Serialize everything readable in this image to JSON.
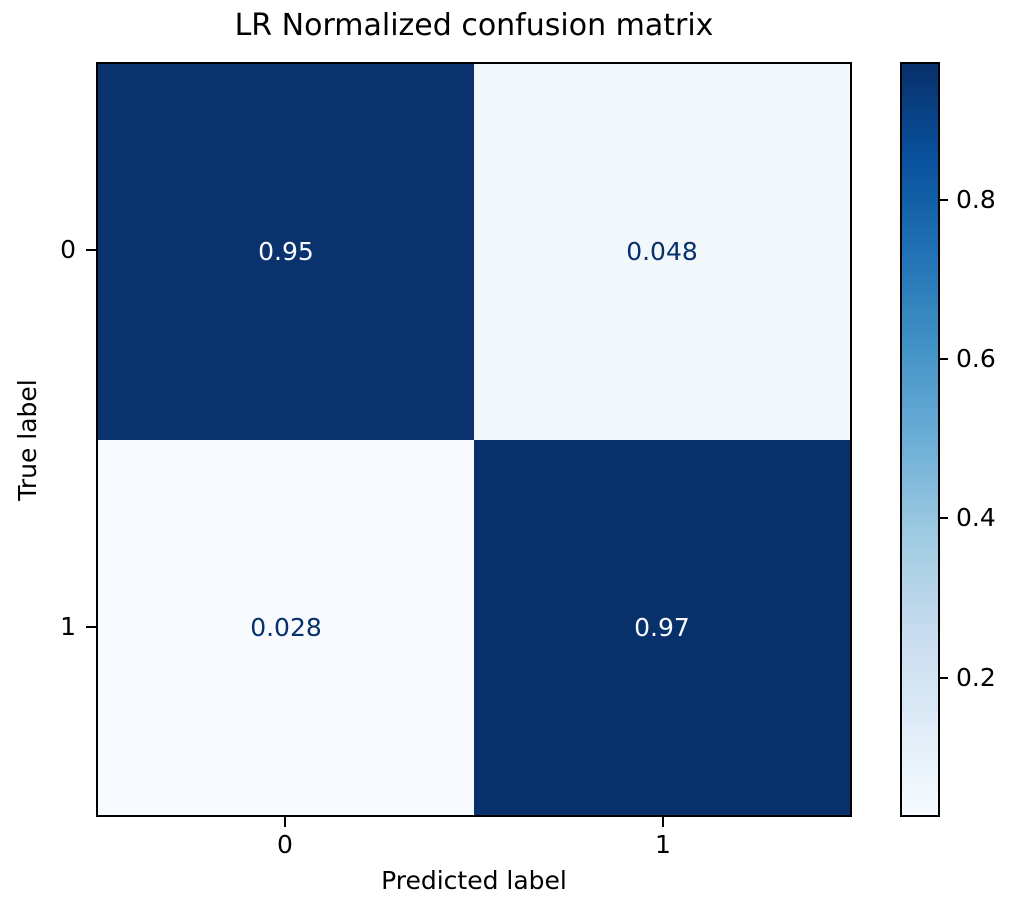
{
  "figure": {
    "background": "#ffffff",
    "text_color": "#000000"
  },
  "chart_data": {
    "type": "heatmap",
    "title": "LR Normalized confusion matrix",
    "xlabel": "Predicted label",
    "ylabel": "True label",
    "x_tick_labels": [
      "0",
      "1"
    ],
    "y_tick_labels": [
      "0",
      "1"
    ],
    "matrix": [
      [
        0.95,
        0.048
      ],
      [
        0.028,
        0.97
      ]
    ],
    "cells": [
      {
        "row": 0,
        "col": 0,
        "label": "0.95",
        "value": 0.95,
        "bg": "#0a336e",
        "fg": "#f7fbff"
      },
      {
        "row": 0,
        "col": 1,
        "label": "0.048",
        "value": 0.048,
        "bg": "#f2f7fc",
        "fg": "#08306b"
      },
      {
        "row": 1,
        "col": 0,
        "label": "0.028",
        "value": 0.028,
        "bg": "#f7fbff",
        "fg": "#08306b"
      },
      {
        "row": 1,
        "col": 1,
        "label": "0.97",
        "value": 0.97,
        "bg": "#08306b",
        "fg": "#f7fbff"
      }
    ],
    "colormap": "Blues",
    "grid": false,
    "colorbar": {
      "position": "right",
      "vmin": 0.028,
      "vmax": 0.97,
      "ticks": [
        {
          "label": "0.8",
          "value": 0.8
        },
        {
          "label": "0.6",
          "value": 0.6
        },
        {
          "label": "0.4",
          "value": 0.4
        },
        {
          "label": "0.2",
          "value": 0.2
        }
      ],
      "gradient_stops": [
        {
          "pos": 0,
          "color": "#08306b"
        },
        {
          "pos": 12.5,
          "color": "#08519c"
        },
        {
          "pos": 25,
          "color": "#2171b5"
        },
        {
          "pos": 37.5,
          "color": "#4292c6"
        },
        {
          "pos": 50,
          "color": "#6baed6"
        },
        {
          "pos": 62.5,
          "color": "#9ecae1"
        },
        {
          "pos": 75,
          "color": "#c6dbef"
        },
        {
          "pos": 87.5,
          "color": "#deebf7"
        },
        {
          "pos": 100,
          "color": "#f7fbff"
        }
      ]
    }
  }
}
